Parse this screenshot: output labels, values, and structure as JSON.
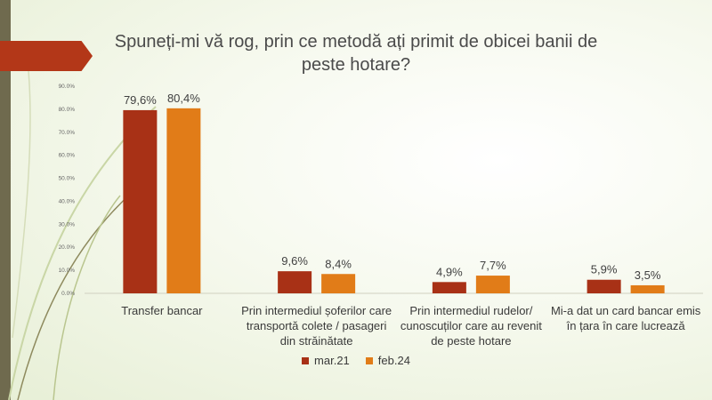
{
  "colors": {
    "series1": "#a83116",
    "series2": "#e17c18",
    "accent": "#b33718"
  },
  "chart_data": {
    "type": "bar",
    "title": "Spuneți-mi vă rog, prin ce metodă ați primit de obicei banii de peste hotare?",
    "categories": [
      "Transfer bancar",
      "Prin intermediul șoferilor care transportă colete / pasageri din străinătate",
      "Prin intermediul rudelor/ cunoscuților care au revenit de peste hotare",
      "Mi-a dat un card bancar emis în țara în care lucrează"
    ],
    "series": [
      {
        "name": "mar.21",
        "values": [
          79.6,
          9.6,
          4.9,
          5.9
        ],
        "labels": [
          "79,6%",
          "9,6%",
          "4,9%",
          "5,9%"
        ]
      },
      {
        "name": "feb.24",
        "values": [
          80.4,
          8.4,
          7.7,
          3.5
        ],
        "labels": [
          "80,4%",
          "8,4%",
          "7,7%",
          "3,5%"
        ]
      }
    ],
    "yticks": [
      "0.0%",
      "10.0%",
      "20.0%",
      "30.0%",
      "40.0%",
      "50.0%",
      "60.0%",
      "70.0%",
      "80.0%",
      "90.0%"
    ],
    "ylim": [
      0,
      90
    ],
    "legend": "bottom",
    "grid": false
  }
}
